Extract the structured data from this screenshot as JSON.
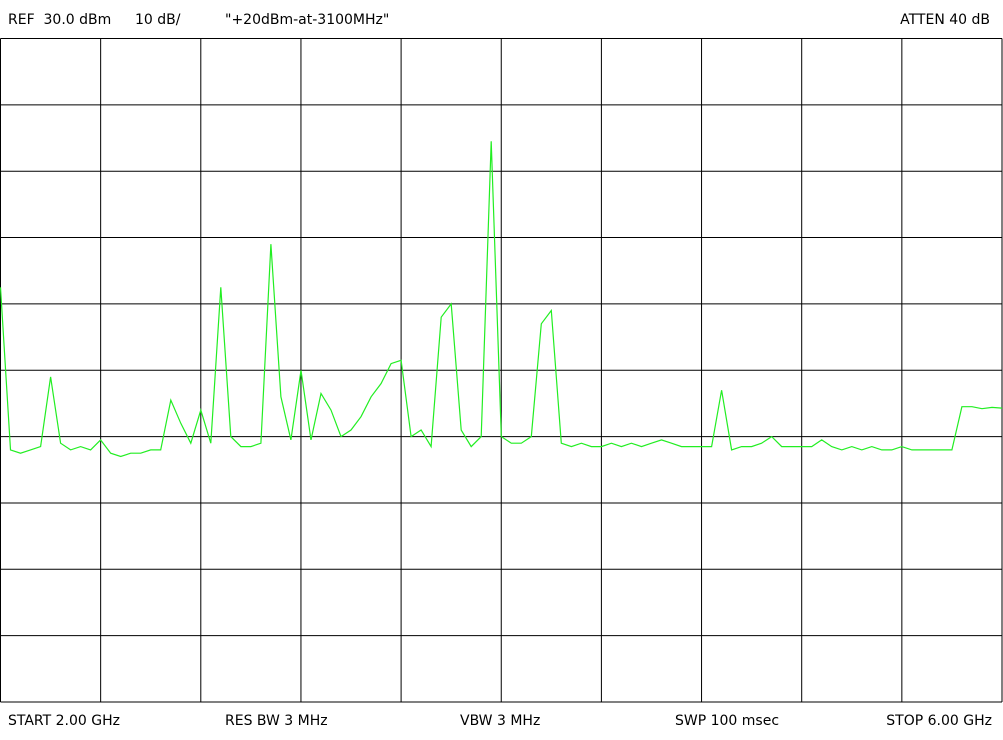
{
  "chart_data": {
    "type": "line",
    "header": [
      "REF  30.0 dBm",
      "10 dB/",
      "\"+20dBm-at-3100MHz\"",
      "ATTEN 40 dB"
    ],
    "footer": [
      "START 2.00 GHz",
      "RES BW 3 MHz",
      "VBW 3 MHz",
      "SWP 100 msec",
      "STOP 6.00 GHz"
    ],
    "x": [
      2,
      2.04,
      2.08,
      2.12,
      2.16,
      2.2,
      2.24,
      2.28,
      2.32,
      2.36,
      2.4,
      2.44,
      2.48,
      2.52,
      2.56,
      2.6,
      2.64,
      2.68,
      2.72,
      2.76,
      2.8,
      2.84,
      2.88,
      2.92,
      2.96,
      3,
      3.04,
      3.08,
      3.12,
      3.16,
      3.2,
      3.24,
      3.28,
      3.32,
      3.36,
      3.4,
      3.44,
      3.48,
      3.52,
      3.56,
      3.6,
      3.64,
      3.68,
      3.72,
      3.76,
      3.8,
      3.84,
      3.88,
      3.92,
      3.96,
      4,
      4.04,
      4.08,
      4.12,
      4.16,
      4.2,
      4.24,
      4.28,
      4.32,
      4.36,
      4.4,
      4.44,
      4.48,
      4.52,
      4.56,
      4.6,
      4.64,
      4.68,
      4.72,
      4.76,
      4.8,
      4.84,
      4.88,
      4.92,
      4.96,
      5,
      5.04,
      5.08,
      5.12,
      5.16,
      5.2,
      5.24,
      5.28,
      5.32,
      5.36,
      5.4,
      5.44,
      5.48,
      5.52,
      5.56,
      5.6,
      5.64,
      5.68,
      5.72,
      5.76,
      5.8,
      5.84,
      5.88,
      5.92,
      5.96,
      6
    ],
    "series": [
      {
        "name": "trace",
        "color": "#22ee22",
        "values": [
          -7.5,
          -32,
          -32.5,
          -32,
          -31.5,
          -21,
          -31,
          -32,
          -31.5,
          -32,
          -30.5,
          -32.5,
          -33,
          -32.5,
          -32.5,
          -32,
          -32,
          -24.5,
          -28,
          -31,
          -26,
          -31,
          -7.5,
          -30,
          -31.5,
          -31.5,
          -31,
          -1,
          -24,
          -30.5,
          -20,
          -30.5,
          -23.5,
          -26,
          -30,
          -29,
          -27,
          -24,
          -22,
          -19,
          -18.5,
          -30,
          -29,
          -31.5,
          -12,
          -10,
          -29,
          -31.5,
          -30,
          14.5,
          -30,
          -31,
          -31,
          -30,
          -13,
          -11,
          -31,
          -31.5,
          -31,
          -31.5,
          -31.5,
          -31,
          -31.5,
          -31,
          -31.5,
          -31,
          -30.5,
          -31,
          -31.5,
          -31.5,
          -31.5,
          -31.5,
          -23,
          -32,
          -31.5,
          -31.5,
          -31,
          -30,
          -31.5,
          -31.5,
          -31.5,
          -31.5,
          -30.5,
          -31.5,
          -32,
          -31.5,
          -32,
          -31.5,
          -32,
          -32,
          -31.5,
          -32,
          -32,
          -32,
          -32,
          -32,
          -25.5,
          -25.5,
          -25.8,
          -25.6,
          -25.7
        ]
      }
    ],
    "xlim": [
      2,
      6
    ],
    "ylim": [
      -70,
      30
    ],
    "xticks": [
      2,
      2.4,
      2.8,
      3.2,
      3.6,
      4,
      4.4,
      4.8,
      5.2,
      5.6,
      6
    ],
    "yticks": [
      -70,
      -60,
      -50,
      -40,
      -30,
      -20,
      -10,
      0,
      10,
      20,
      30
    ],
    "grid": true
  }
}
